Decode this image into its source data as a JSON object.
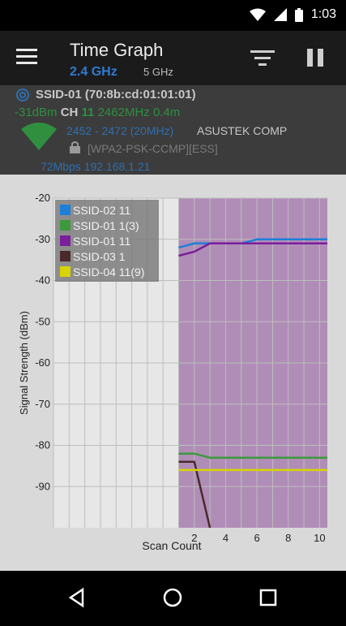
{
  "status_bar": {
    "time": "1:03"
  },
  "app_bar": {
    "title": "Time Graph",
    "band_selected": "2.4 GHz",
    "band_other": "5 GHz"
  },
  "access_point": {
    "ssid_line": "SSID-01 (70:8b:cd:01:01:01)",
    "signal": "-31dBm",
    "channel_label": "CH",
    "channel": "11",
    "frequency": "2462MHz",
    "distance": "0.4m",
    "channel_range": "2452 - 2472 (20MHz)",
    "vendor": "ASUSTEK COMP",
    "security": "[WPA2-PSK-CCMP][ESS]",
    "speed": "72Mbps",
    "ip": "192.168.1.21"
  },
  "chart_data": {
    "type": "line",
    "xlabel": "Scan Count",
    "ylabel": "Signal Strength (dBm)",
    "ylim": [
      -100,
      -20
    ],
    "xlim": [
      -7,
      10.5
    ],
    "yticks": [
      -20,
      -30,
      -40,
      -50,
      -60,
      -70,
      -80,
      -90
    ],
    "xticks": [
      2,
      4,
      6,
      8,
      10
    ],
    "legend_position": "top-left",
    "series": [
      {
        "name": "SSID-02 11",
        "color": "#1e7fd8",
        "x": [
          1,
          2,
          3,
          4,
          5,
          6,
          7,
          8,
          9,
          10,
          10.5
        ],
        "y": [
          -32,
          -31,
          -31,
          -31,
          -31,
          -30,
          -30,
          -30,
          -30,
          -30,
          -30
        ]
      },
      {
        "name": "SSID-01 1(3)",
        "color": "#3c9a3c",
        "x": [
          1,
          2,
          3,
          4,
          5,
          6,
          7,
          8,
          9,
          10,
          10.5
        ],
        "y": [
          -82,
          -82,
          -83,
          -83,
          -83,
          -83,
          -83,
          -83,
          -83,
          -83,
          -83
        ]
      },
      {
        "name": "SSID-01 11",
        "color": "#7a1e9c",
        "x": [
          1,
          2,
          3,
          4,
          5,
          6,
          7,
          8,
          9,
          10,
          10.5
        ],
        "y": [
          -34,
          -33,
          -31,
          -31,
          -31,
          -31,
          -31,
          -31,
          -31,
          -31,
          -31
        ]
      },
      {
        "name": "SSID-03 1",
        "color": "#4a2a2a",
        "x": [
          1,
          2,
          3
        ],
        "y": [
          -84,
          -84,
          -100
        ]
      },
      {
        "name": "SSID-04 11(9)",
        "color": "#d7d400",
        "x": [
          1,
          2,
          3,
          4,
          5,
          6,
          7,
          8,
          9,
          10,
          10.5
        ],
        "y": [
          -86,
          -86,
          -86,
          -86,
          -86,
          -86,
          -86,
          -86,
          -86,
          -86,
          -86
        ]
      }
    ]
  }
}
